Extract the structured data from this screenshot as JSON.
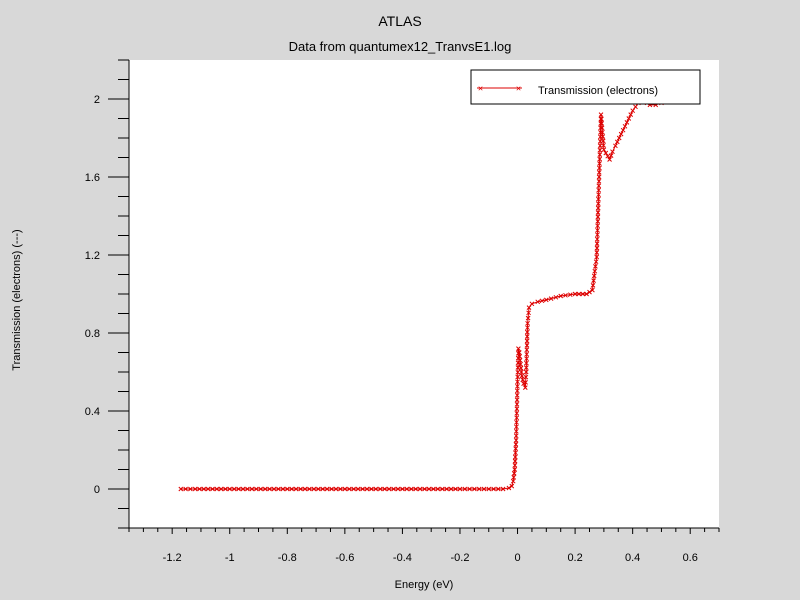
{
  "chart_data": {
    "type": "line",
    "title": "ATLAS",
    "subtitle": "Data from quantumex12_TranvsE1.log",
    "xlabel": "Energy (eV)",
    "ylabel": "Transmission (electrons) (---)",
    "xlim": [
      -1.35,
      0.7
    ],
    "ylim": [
      -0.2,
      2.2
    ],
    "xticks": [
      -1.2,
      -1,
      -0.8,
      -0.6,
      -0.4,
      -0.2,
      0,
      0.2,
      0.4,
      0.6
    ],
    "xtick_labels": [
      "-1.2",
      "-1",
      "-0.8",
      "-0.6",
      "-0.4",
      "-0.2",
      "0",
      "0.2",
      "0.4",
      "0.6"
    ],
    "yticks": [
      0,
      0.4,
      0.8,
      1.2,
      1.6,
      2
    ],
    "ytick_labels": [
      "0",
      "0.4",
      "0.8",
      "1.2",
      "1.6",
      "2"
    ],
    "legend_position": "top-right",
    "grid": false,
    "colors": {
      "background": "#d8d8d8",
      "plot_area": "#ffffff",
      "series": "#dd0000",
      "axis": "#000000"
    },
    "series": [
      {
        "name": "Transmission (electrons)",
        "x": [
          -1.17,
          -1.12,
          -1.0,
          -0.8,
          -0.6,
          -0.4,
          -0.2,
          -0.1,
          -0.05,
          -0.03,
          -0.02,
          -0.015,
          -0.01,
          -0.005,
          0.0,
          0.003,
          0.006,
          0.009,
          0.012,
          0.015,
          0.018,
          0.021,
          0.024,
          0.027,
          0.03,
          0.035,
          0.04,
          0.05,
          0.07,
          0.1,
          0.15,
          0.2,
          0.24,
          0.26,
          0.275,
          0.29,
          0.3,
          0.32,
          0.33,
          0.34,
          0.36,
          0.38,
          0.4,
          0.42,
          0.44,
          0.46,
          0.48,
          0.5
        ],
        "y": [
          0.0,
          0.0,
          0.0,
          0.0,
          0.0,
          0.0,
          0.0,
          0.0,
          0.0,
          0.005,
          0.015,
          0.04,
          0.1,
          0.25,
          0.55,
          0.72,
          0.7,
          0.66,
          0.62,
          0.58,
          0.56,
          0.54,
          0.53,
          0.52,
          0.6,
          0.85,
          0.93,
          0.95,
          0.96,
          0.97,
          0.99,
          1.0,
          1.0,
          1.02,
          1.19,
          1.92,
          1.74,
          1.69,
          1.73,
          1.76,
          1.82,
          1.88,
          1.94,
          1.98,
          1.99,
          1.97,
          1.97,
          1.98
        ]
      }
    ]
  }
}
